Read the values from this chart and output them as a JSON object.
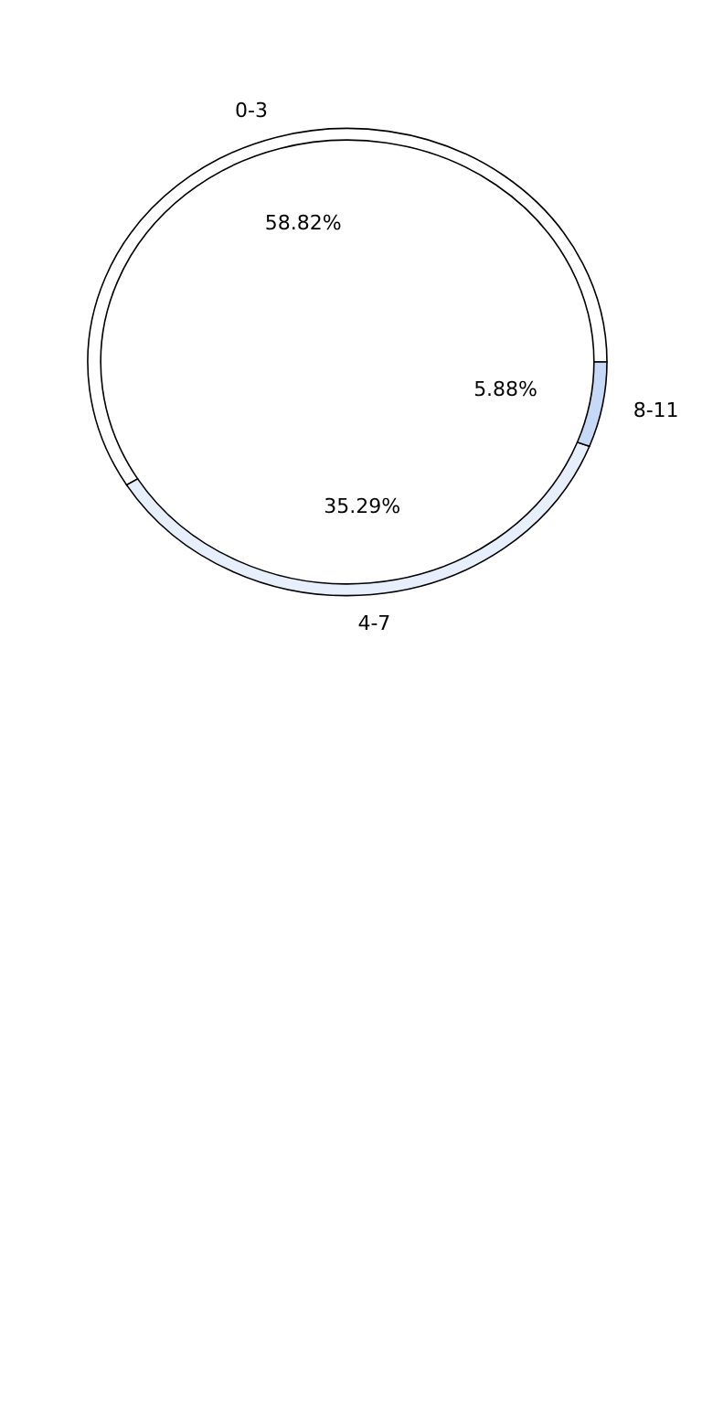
{
  "chart_data": {
    "type": "donut",
    "categories": [
      "0-3",
      "4-7",
      "8-11"
    ],
    "values": [
      58.82,
      35.29,
      5.88
    ],
    "value_labels": [
      "58.82%",
      "35.29%",
      "5.88%"
    ],
    "colors": [
      "#ffffff",
      "#e8effc",
      "#c6d9f7"
    ]
  }
}
